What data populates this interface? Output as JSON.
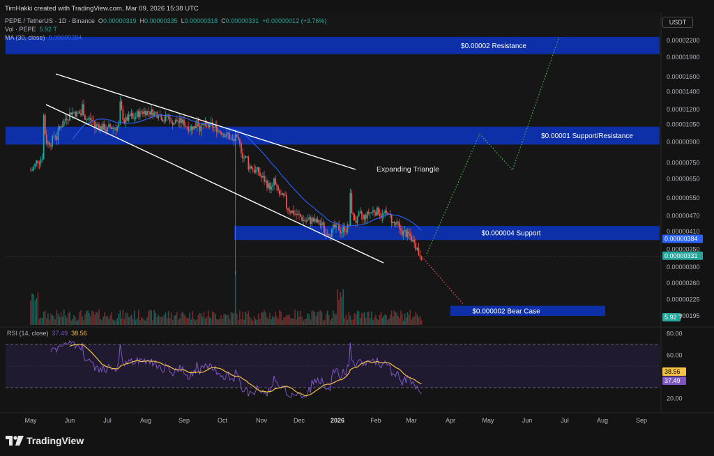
{
  "header": {
    "caption": "TimHakki created with TradingView.com, Mar 09, 2026 15:38 UTC",
    "symbol": "PEPE / TetherUS · 1D · Binance",
    "o_label": "O",
    "o_value": "0.00000319",
    "h_label": "H",
    "h_value": "0.00000335",
    "l_label": "L",
    "l_value": "0.00000318",
    "c_label": "C",
    "c_value": "0.00000331",
    "change": "+0.00000012 (+3.76%)",
    "vol_label": "Vol · PEPE",
    "vol_value": "5.92 T",
    "ma_label": "MA (30, close)",
    "ma_value": "0.00000384",
    "currency": "USDT",
    "rsi_label": "RSI (14, close)",
    "rsi_value": "37.49",
    "rsi_ma_value": "38.56"
  },
  "branding": {
    "name": "TradingView",
    "logo_icon": "tradingview-logo-icon"
  },
  "colors": {
    "background": "#131313",
    "up": "#26a69a",
    "down": "#ef5350",
    "ma": "#2962ff",
    "zone": "#0d2fa8",
    "rsi": "#7e57c2",
    "rsi_ma": "#f5c242",
    "bull_path": "#4caf50",
    "bear_path": "#ef5350"
  },
  "chart_data": {
    "type": "candlestick",
    "price_scale": "log",
    "x_axis_ticks": [
      "May",
      "Jun",
      "Jul",
      "Aug",
      "Sep",
      "Oct",
      "Nov",
      "Dec",
      "2026",
      "Feb",
      "Mar",
      "Apr",
      "May",
      "Jun",
      "Jul",
      "Aug",
      "Sep"
    ],
    "y_axis_ticks": [
      "0.00002200",
      "0.00001900",
      "0.00001600",
      "0.00001400",
      "0.00001200",
      "0.00001050",
      "0.00000900",
      "0.00000750",
      "0.00000650",
      "0.00000550",
      "0.00000470",
      "0.00000410",
      "0.00000350",
      "0.00000300",
      "0.00000260",
      "0.00000225",
      "0.00000195"
    ],
    "price_labels": [
      {
        "text": "0.00000384",
        "color": "#2962ff"
      },
      {
        "text": "0.00000331",
        "color": "#26a69a"
      },
      {
        "text": "5.92 T",
        "color": "#26a69a"
      }
    ],
    "zones": [
      {
        "label": "$0.00002 Resistance",
        "from": 1.95e-05,
        "to": 2.27e-05
      },
      {
        "label": "$0.00001 Support/Resistance",
        "from": 8.8e-06,
        "to": 1.03e-05
      },
      {
        "label": "$0.000004 Support",
        "from": 3.8e-06,
        "to": 4.3e-06
      },
      {
        "label": "$0.000002 Bear Case",
        "from": 1.95e-06,
        "to": 2.13e-06
      }
    ],
    "pattern_label": "Expanding Triangle",
    "ohlc_monthly_approx": [
      {
        "month": "May",
        "open": 7e-06,
        "high": 1.6e-05,
        "low": 6.8e-06,
        "close": 1.2e-05
      },
      {
        "month": "Jun",
        "open": 1.2e-05,
        "high": 1.35e-05,
        "low": 9.2e-06,
        "close": 1e-05
      },
      {
        "month": "Jul",
        "open": 1e-05,
        "high": 1.45e-05,
        "low": 9.3e-06,
        "close": 1.2e-05
      },
      {
        "month": "Aug",
        "open": 1.2e-05,
        "high": 1.28e-05,
        "low": 9.7e-06,
        "close": 1.05e-05
      },
      {
        "month": "Sep",
        "open": 1.05e-05,
        "high": 1.25e-05,
        "low": 9.8e-06,
        "close": 1e-05
      },
      {
        "month": "Oct",
        "open": 1e-05,
        "high": 1.06e-05,
        "low": 2.8e-06,
        "close": 6.5e-06
      },
      {
        "month": "Nov",
        "open": 6.5e-06,
        "high": 7e-06,
        "low": 4.2e-06,
        "close": 4.6e-06
      },
      {
        "month": "Dec",
        "open": 4.6e-06,
        "high": 4.8e-06,
        "low": 3.7e-06,
        "close": 4.1e-06
      },
      {
        "month": "Jan",
        "open": 4.1e-06,
        "high": 7e-06,
        "low": 4e-06,
        "close": 5e-06
      },
      {
        "month": "Feb",
        "open": 5e-06,
        "high": 5.2e-06,
        "low": 3.4e-06,
        "close": 3.8e-06
      },
      {
        "month": "Mar",
        "open": 3.8e-06,
        "high": 4e-06,
        "low": 3.1e-06,
        "close": 3.3e-06
      }
    ],
    "projection_bull": [
      {
        "month": "Mar",
        "price": 3.3e-06
      },
      {
        "month": "Apr-late",
        "price": 9.4e-06
      },
      {
        "month": "May-late",
        "price": 7e-06
      },
      {
        "month": "Jun-late",
        "price": 2.1e-05
      }
    ],
    "projection_bear": [
      {
        "month": "Mar",
        "price": 3.3e-06
      },
      {
        "month": "Apr-early",
        "price": 2.1e-06
      }
    ],
    "rsi": {
      "levels": [
        80,
        60,
        20
      ],
      "ticks": [
        "80.00",
        "60.00",
        "20.00"
      ],
      "value": 37.49,
      "ma_value": 38.56,
      "upper_band": 70,
      "lower_band": 30
    }
  }
}
